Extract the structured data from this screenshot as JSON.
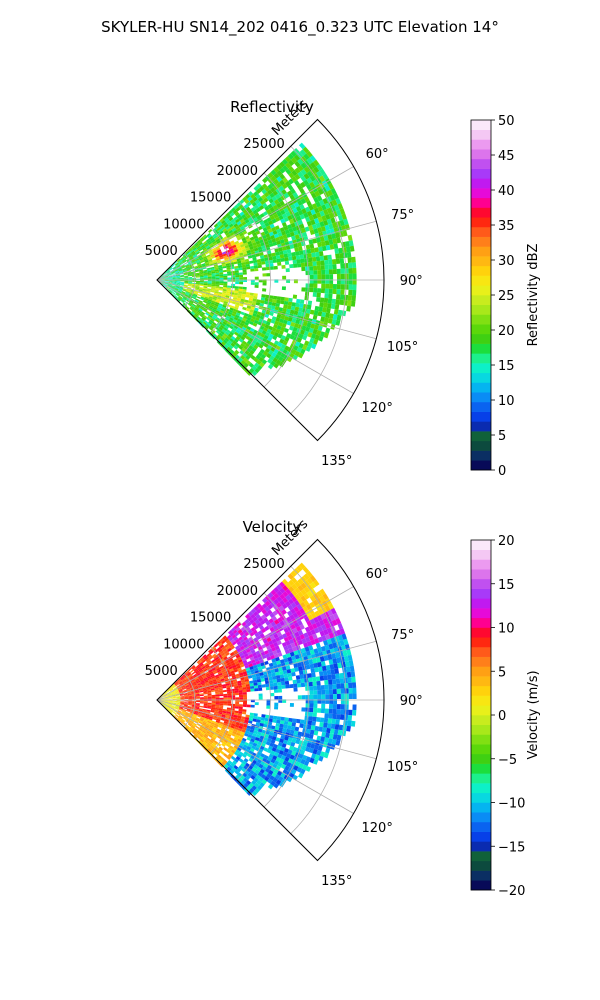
{
  "figure": {
    "title": "SKYLER-HU  SN14_202  0416_0.323 UTC Elevation 14°"
  },
  "chart_data": [
    {
      "type": "polar-sector",
      "title": "Reflectivity",
      "range_label": "Meters",
      "range_ticks": [
        5000,
        10000,
        15000,
        20000,
        25000
      ],
      "range_max": 30000,
      "azimuth_ticks": [
        "60°",
        "75°",
        "90°",
        "105°",
        "120°",
        "135°"
      ],
      "azimuth_values": [
        60,
        75,
        90,
        105,
        120,
        135
      ],
      "azimuth_range": [
        45,
        135
      ],
      "colorbar": {
        "label": "Reflectivity dBZ",
        "min": 0,
        "max": 50,
        "ticks": [
          "0",
          "5",
          "10",
          "15",
          "20",
          "25",
          "30",
          "35",
          "40",
          "45",
          "50"
        ]
      },
      "colors": [
        "#080a58",
        "#0b2f63",
        "#0c4a3e",
        "#10613a",
        "#0a2bb0",
        "#0740e8",
        "#0a63f0",
        "#0a8cf5",
        "#05b4f0",
        "#08d8e0",
        "#0df0c8",
        "#1cf08c",
        "#1cde3d",
        "#3fd012",
        "#5bd80a",
        "#80e012",
        "#a8e81a",
        "#c8ec1e",
        "#e8f01a",
        "#f8e612",
        "#ffd20c",
        "#ffb812",
        "#ffa014",
        "#ff7f1a",
        "#ff5a1a",
        "#ff2810",
        "#ff0830",
        "#ff0090",
        "#e60ad8",
        "#c01af0",
        "#a83af8",
        "#c050f0",
        "#dc74ec",
        "#ec9af0",
        "#f4c8f4",
        "#fbe8fa"
      ]
    },
    {
      "type": "polar-sector",
      "title": "Velocity",
      "range_label": "Meters",
      "range_ticks": [
        5000,
        10000,
        15000,
        20000,
        25000
      ],
      "range_max": 30000,
      "azimuth_ticks": [
        "60°",
        "75°",
        "90°",
        "105°",
        "120°",
        "135°"
      ],
      "azimuth_values": [
        60,
        75,
        90,
        105,
        120,
        135
      ],
      "azimuth_range": [
        45,
        135
      ],
      "colorbar": {
        "label": "Velocity (m/s)",
        "min": -20,
        "max": 20,
        "ticks": [
          "−20",
          "−15",
          "−10",
          "−5",
          "0",
          "5",
          "10",
          "15",
          "20"
        ]
      },
      "colors": [
        "#080a58",
        "#0b2f63",
        "#0c4a3e",
        "#10613a",
        "#0a2bb0",
        "#0740e8",
        "#0a63f0",
        "#0a8cf5",
        "#05b4f0",
        "#08d8e0",
        "#0df0c8",
        "#1cf08c",
        "#1cde3d",
        "#3fd012",
        "#5bd80a",
        "#80e012",
        "#a8e81a",
        "#c8ec1e",
        "#e8f01a",
        "#f8e612",
        "#ffd20c",
        "#ffb812",
        "#ffa014",
        "#ff7f1a",
        "#ff5a1a",
        "#ff2810",
        "#ff0830",
        "#ff0090",
        "#e60ad8",
        "#c01af0",
        "#a83af8",
        "#c050f0",
        "#dc74ec",
        "#ec9af0",
        "#f4c8f4",
        "#fbe8fa"
      ]
    }
  ]
}
